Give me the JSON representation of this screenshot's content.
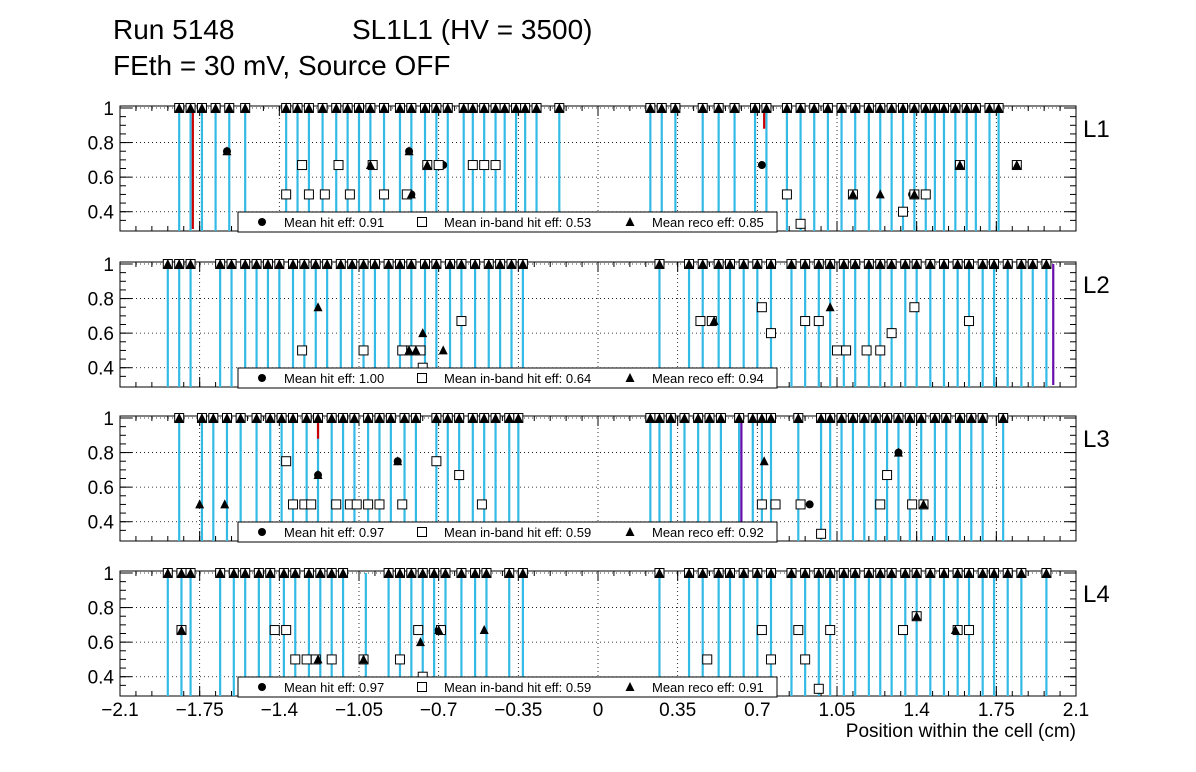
{
  "title": {
    "run": "Run 5148",
    "chamber": "SL1L1 (HV = 3500)",
    "conditions": "FEth = 30 mV, Source OFF"
  },
  "chart_data": {
    "type": "scatter",
    "xlabel": "Position within the cell (cm)",
    "xlim": [
      -2.1,
      2.1
    ],
    "ylim": [
      0.3,
      1.0
    ],
    "x_ticks": [
      "−2.1",
      "−1.75",
      "−1.4",
      "−1.05",
      "−0.7",
      "−0.35",
      "0",
      "0.35",
      "0.7",
      "1.05",
      "1.4",
      "1.75",
      "2.1"
    ],
    "x_tick_values": [
      -2.1,
      -1.75,
      -1.4,
      -1.05,
      -0.7,
      -0.35,
      0,
      0.35,
      0.7,
      1.05,
      1.4,
      1.75,
      2.1
    ],
    "y_ticks": [
      "0.4",
      "0.6",
      "0.8",
      "1"
    ],
    "y_tick_values": [
      0.4,
      0.6,
      0.8,
      1.0
    ],
    "grid": true,
    "colors": {
      "hit_line": "#33bbe6",
      "red_marker": "#cc0000",
      "purple_marker": "#6a0dad",
      "markers": "#000000"
    },
    "legend_labels": {
      "hit": "Mean hit  eff:",
      "inband": "Mean in-band hit eff:",
      "reco": "Mean reco eff:"
    },
    "panels": [
      {
        "layer": "L1",
        "legend": {
          "hit": "0.91",
          "inband": "0.53",
          "reco": "0.85"
        },
        "hit_x": [
          -1.84,
          -1.79,
          -1.74,
          -1.68,
          -1.62,
          -1.55,
          -1.37,
          -1.32,
          -1.27,
          -1.21,
          -1.15,
          -1.1,
          -1.05,
          -1.0,
          -0.94,
          -0.87,
          -0.82,
          -0.76,
          -0.71,
          -0.66,
          -0.59,
          -0.55,
          -0.5,
          -0.45,
          -0.41,
          -0.36,
          -0.32,
          -0.27,
          -0.17,
          0.23,
          0.28,
          0.34,
          0.46,
          0.53,
          0.6,
          0.69,
          0.74,
          0.83,
          0.89,
          0.95,
          1.01,
          1.07,
          1.13,
          1.19,
          1.24,
          1.29,
          1.34,
          1.39,
          1.44,
          1.48,
          1.52,
          1.57,
          1.62,
          1.66,
          1.72,
          1.76
        ],
        "full_eff_x": [
          -1.84,
          -1.79,
          -1.74,
          -1.68,
          -1.62,
          -1.55,
          -1.37,
          -1.32,
          -1.27,
          -1.21,
          -1.15,
          -1.1,
          -1.05,
          -1.0,
          -0.94,
          -0.87,
          -0.82,
          -0.76,
          -0.71,
          -0.66,
          -0.59,
          -0.55,
          -0.5,
          -0.45,
          -0.41,
          -0.36,
          -0.32,
          -0.27,
          -0.17,
          0.23,
          0.28,
          0.34,
          0.46,
          0.53,
          0.6,
          0.69,
          0.74,
          0.83,
          0.89,
          0.95,
          1.01,
          1.07,
          1.13,
          1.19,
          1.24,
          1.29,
          1.34,
          1.39,
          1.44,
          1.48,
          1.52,
          1.57,
          1.62,
          1.66,
          1.72,
          1.76
        ],
        "hit_low": [
          [
            -1.63,
            0.75
          ],
          [
            -0.83,
            0.75
          ],
          [
            -0.82,
            0.5
          ],
          [
            -0.75,
            0.67
          ],
          [
            -0.68,
            0.67
          ],
          [
            0.72,
            0.67
          ],
          [
            1.12,
            0.5
          ],
          [
            1.38,
            0.5
          ],
          [
            1.59,
            0.67
          ],
          [
            1.84,
            0.67
          ]
        ],
        "inband": [
          [
            -1.37,
            0.5
          ],
          [
            -1.3,
            0.67
          ],
          [
            -1.27,
            0.5
          ],
          [
            -1.2,
            0.5
          ],
          [
            -1.14,
            0.67
          ],
          [
            -1.09,
            0.5
          ],
          [
            -0.99,
            0.67
          ],
          [
            -0.94,
            0.5
          ],
          [
            -0.84,
            0.5
          ],
          [
            -0.75,
            0.67
          ],
          [
            -0.7,
            0.67
          ],
          [
            -0.55,
            0.67
          ],
          [
            -0.5,
            0.67
          ],
          [
            -0.45,
            0.67
          ],
          [
            0.83,
            0.5
          ],
          [
            0.89,
            0.33
          ],
          [
            1.12,
            0.5
          ],
          [
            1.34,
            0.4
          ],
          [
            1.39,
            0.5
          ],
          [
            1.44,
            0.5
          ],
          [
            1.59,
            0.67
          ],
          [
            1.84,
            0.67
          ]
        ],
        "reco": [
          [
            -1.63,
            0.75
          ],
          [
            -1.0,
            0.67
          ],
          [
            -0.83,
            0.75
          ],
          [
            -0.82,
            0.5
          ],
          [
            -0.75,
            0.67
          ],
          [
            1.12,
            0.5
          ],
          [
            1.24,
            0.5
          ],
          [
            1.39,
            0.5
          ],
          [
            1.59,
            0.67
          ],
          [
            1.84,
            0.67
          ]
        ],
        "special": [
          {
            "x": -1.78,
            "y": 0.3,
            "color": "red"
          },
          {
            "x": 0.73,
            "y": 0.88,
            "color": "red"
          }
        ]
      },
      {
        "layer": "L2",
        "legend": {
          "hit": "1.00",
          "inband": "0.64",
          "reco": "0.94"
        },
        "hit_x": [
          -1.89,
          -1.84,
          -1.79,
          -1.66,
          -1.61,
          -1.55,
          -1.5,
          -1.45,
          -1.4,
          -1.34,
          -1.29,
          -1.24,
          -1.19,
          -1.13,
          -1.08,
          -1.03,
          -0.98,
          -0.92,
          -0.87,
          -0.82,
          -0.76,
          -0.71,
          -0.65,
          -0.6,
          -0.54,
          -0.48,
          -0.43,
          -0.38,
          -0.33,
          0.27,
          0.4,
          0.46,
          0.53,
          0.58,
          0.64,
          0.7,
          0.76,
          0.85,
          0.91,
          0.97,
          1.02,
          1.08,
          1.13,
          1.19,
          1.24,
          1.29,
          1.35,
          1.4,
          1.46,
          1.52,
          1.58,
          1.63,
          1.69,
          1.74,
          1.8,
          1.86,
          1.91,
          1.97
        ],
        "full_eff_x": [
          -1.89,
          -1.84,
          -1.79,
          -1.66,
          -1.61,
          -1.55,
          -1.5,
          -1.45,
          -1.4,
          -1.34,
          -1.29,
          -1.24,
          -1.19,
          -1.13,
          -1.08,
          -1.03,
          -0.98,
          -0.92,
          -0.87,
          -0.82,
          -0.76,
          -0.71,
          -0.65,
          -0.6,
          -0.54,
          -0.48,
          -0.43,
          -0.38,
          -0.33,
          0.27,
          0.4,
          0.46,
          0.53,
          0.58,
          0.64,
          0.7,
          0.76,
          0.85,
          0.91,
          0.97,
          1.02,
          1.08,
          1.13,
          1.19,
          1.24,
          1.29,
          1.35,
          1.4,
          1.46,
          1.52,
          1.58,
          1.63,
          1.69,
          1.74,
          1.8,
          1.86,
          1.91,
          1.97
        ],
        "hit_low": [],
        "inband": [
          [
            -1.3,
            0.5
          ],
          [
            -1.03,
            0.5
          ],
          [
            -0.86,
            0.5
          ],
          [
            -0.82,
            0.5
          ],
          [
            -0.78,
            0.5
          ],
          [
            -0.77,
            0.4
          ],
          [
            -0.6,
            0.67
          ],
          [
            0.45,
            0.67
          ],
          [
            0.5,
            0.67
          ],
          [
            0.72,
            0.75
          ],
          [
            0.76,
            0.6
          ],
          [
            0.91,
            0.67
          ],
          [
            0.97,
            0.67
          ],
          [
            1.05,
            0.5
          ],
          [
            1.09,
            0.5
          ],
          [
            1.18,
            0.5
          ],
          [
            1.24,
            0.5
          ],
          [
            1.29,
            0.6
          ],
          [
            1.39,
            0.75
          ],
          [
            1.63,
            0.67
          ]
        ],
        "reco": [
          [
            -1.23,
            0.75
          ],
          [
            -0.83,
            0.5
          ],
          [
            -0.8,
            0.5
          ],
          [
            -0.77,
            0.6
          ],
          [
            -0.68,
            0.5
          ],
          [
            0.51,
            0.67
          ],
          [
            1.02,
            0.75
          ]
        ],
        "special": [
          {
            "x": 2.0,
            "y": 0.3,
            "color": "purple"
          }
        ]
      },
      {
        "layer": "L3",
        "legend": {
          "hit": "0.97",
          "inband": "0.59",
          "reco": "0.92"
        },
        "hit_x": [
          -1.84,
          -1.74,
          -1.69,
          -1.63,
          -1.57,
          -1.5,
          -1.44,
          -1.39,
          -1.34,
          -1.28,
          -1.23,
          -1.17,
          -1.12,
          -1.07,
          -1.01,
          -0.96,
          -0.91,
          -0.85,
          -0.8,
          -0.71,
          -0.66,
          -0.61,
          -0.55,
          -0.5,
          -0.45,
          -0.39,
          -0.35,
          0.23,
          0.27,
          0.32,
          0.38,
          0.44,
          0.49,
          0.54,
          0.62,
          0.68,
          0.72,
          0.76,
          0.88,
          0.98,
          1.02,
          1.07,
          1.12,
          1.17,
          1.22,
          1.27,
          1.32,
          1.37,
          1.42,
          1.48,
          1.53,
          1.59,
          1.64,
          1.69,
          1.78
        ],
        "full_eff_x": [
          -1.84,
          -1.74,
          -1.69,
          -1.63,
          -1.57,
          -1.5,
          -1.44,
          -1.39,
          -1.34,
          -1.28,
          -1.23,
          -1.17,
          -1.12,
          -1.07,
          -1.01,
          -0.96,
          -0.91,
          -0.85,
          -0.8,
          -0.71,
          -0.66,
          -0.61,
          -0.55,
          -0.5,
          -0.45,
          -0.39,
          -0.35,
          0.23,
          0.27,
          0.32,
          0.38,
          0.44,
          0.49,
          0.54,
          0.62,
          0.68,
          0.72,
          0.76,
          0.88,
          0.98,
          1.02,
          1.07,
          1.12,
          1.17,
          1.22,
          1.27,
          1.32,
          1.37,
          1.42,
          1.48,
          1.53,
          1.59,
          1.64,
          1.69,
          1.78
        ],
        "hit_low": [
          [
            -1.23,
            0.67
          ],
          [
            -0.88,
            0.75
          ],
          [
            0.93,
            0.5
          ],
          [
            1.32,
            0.8
          ]
        ],
        "inband": [
          [
            -1.37,
            0.75
          ],
          [
            -1.34,
            0.5
          ],
          [
            -1.29,
            0.5
          ],
          [
            -1.26,
            0.5
          ],
          [
            -1.15,
            0.5
          ],
          [
            -1.09,
            0.5
          ],
          [
            -1.06,
            0.5
          ],
          [
            -1.01,
            0.5
          ],
          [
            -0.96,
            0.5
          ],
          [
            -0.86,
            0.5
          ],
          [
            -0.71,
            0.75
          ],
          [
            -0.61,
            0.67
          ],
          [
            -0.51,
            0.5
          ],
          [
            0.72,
            0.5
          ],
          [
            0.78,
            0.5
          ],
          [
            0.89,
            0.5
          ],
          [
            0.98,
            0.33
          ],
          [
            1.24,
            0.5
          ],
          [
            1.27,
            0.67
          ],
          [
            1.38,
            0.5
          ],
          [
            1.43,
            0.5
          ]
        ],
        "reco": [
          [
            -1.75,
            0.5
          ],
          [
            -1.64,
            0.5
          ],
          [
            -1.23,
            0.67
          ],
          [
            -0.88,
            0.75
          ],
          [
            0.73,
            0.75
          ],
          [
            1.32,
            0.8
          ],
          [
            1.43,
            0.5
          ]
        ],
        "special": [
          {
            "x": -1.23,
            "y": 0.88,
            "color": "red"
          },
          {
            "x": 0.63,
            "y": 0.3,
            "color": "purple"
          }
        ]
      },
      {
        "layer": "L4",
        "legend": {
          "hit": "0.97",
          "inband": "0.59",
          "reco": "0.91"
        },
        "hit_x": [
          -1.89,
          -1.83,
          -1.79,
          -1.66,
          -1.6,
          -1.55,
          -1.49,
          -1.44,
          -1.38,
          -1.33,
          -1.27,
          -1.22,
          -1.17,
          -1.12,
          -1.02,
          -0.92,
          -0.87,
          -0.82,
          -0.77,
          -0.72,
          -0.67,
          -0.6,
          -0.54,
          -0.49,
          -0.39,
          -0.33,
          0.27,
          0.4,
          0.46,
          0.53,
          0.58,
          0.64,
          0.7,
          0.76,
          0.85,
          0.91,
          0.97,
          1.02,
          1.08,
          1.13,
          1.19,
          1.24,
          1.29,
          1.35,
          1.4,
          1.46,
          1.52,
          1.58,
          1.63,
          1.69,
          1.74,
          1.8,
          1.86,
          1.97
        ],
        "full_eff_x": [
          -1.89,
          -1.83,
          -1.79,
          -1.66,
          -1.6,
          -1.55,
          -1.49,
          -1.44,
          -1.38,
          -1.33,
          -1.27,
          -1.22,
          -1.17,
          -1.12,
          -0.92,
          -0.87,
          -0.82,
          -0.77,
          -0.72,
          -0.67,
          -0.6,
          -0.54,
          -0.49,
          -0.39,
          -0.33,
          0.27,
          0.4,
          0.46,
          0.53,
          0.58,
          0.64,
          0.7,
          0.76,
          0.85,
          0.91,
          0.97,
          1.02,
          1.08,
          1.13,
          1.19,
          1.24,
          1.29,
          1.35,
          1.4,
          1.46,
          1.52,
          1.58,
          1.63,
          1.69,
          1.74,
          1.8,
          1.86,
          1.97
        ],
        "hit_low": [
          [
            -1.83,
            0.67
          ],
          [
            -1.03,
            0.5
          ],
          [
            -0.7,
            0.67
          ],
          [
            1.4,
            0.75
          ],
          [
            1.58,
            0.67
          ]
        ],
        "inband": [
          [
            -1.83,
            0.67
          ],
          [
            -1.42,
            0.67
          ],
          [
            -1.37,
            0.67
          ],
          [
            -1.33,
            0.5
          ],
          [
            -1.28,
            0.5
          ],
          [
            -1.24,
            0.5
          ],
          [
            -1.17,
            0.5
          ],
          [
            -1.03,
            0.5
          ],
          [
            -0.87,
            0.5
          ],
          [
            -0.79,
            0.67
          ],
          [
            -0.77,
            0.4
          ],
          [
            -0.69,
            0.67
          ],
          [
            0.48,
            0.5
          ],
          [
            0.72,
            0.67
          ],
          [
            0.76,
            0.5
          ],
          [
            0.88,
            0.67
          ],
          [
            0.91,
            0.5
          ],
          [
            0.97,
            0.33
          ],
          [
            1.02,
            0.67
          ],
          [
            1.34,
            0.67
          ],
          [
            1.4,
            0.75
          ],
          [
            1.58,
            0.67
          ],
          [
            1.63,
            0.67
          ]
        ],
        "reco": [
          [
            -1.83,
            0.67
          ],
          [
            -1.23,
            0.5
          ],
          [
            -1.03,
            0.5
          ],
          [
            -0.78,
            0.6
          ],
          [
            -0.7,
            0.67
          ],
          [
            -0.5,
            0.67
          ],
          [
            1.4,
            0.75
          ],
          [
            1.57,
            0.67
          ]
        ],
        "special": []
      }
    ]
  }
}
